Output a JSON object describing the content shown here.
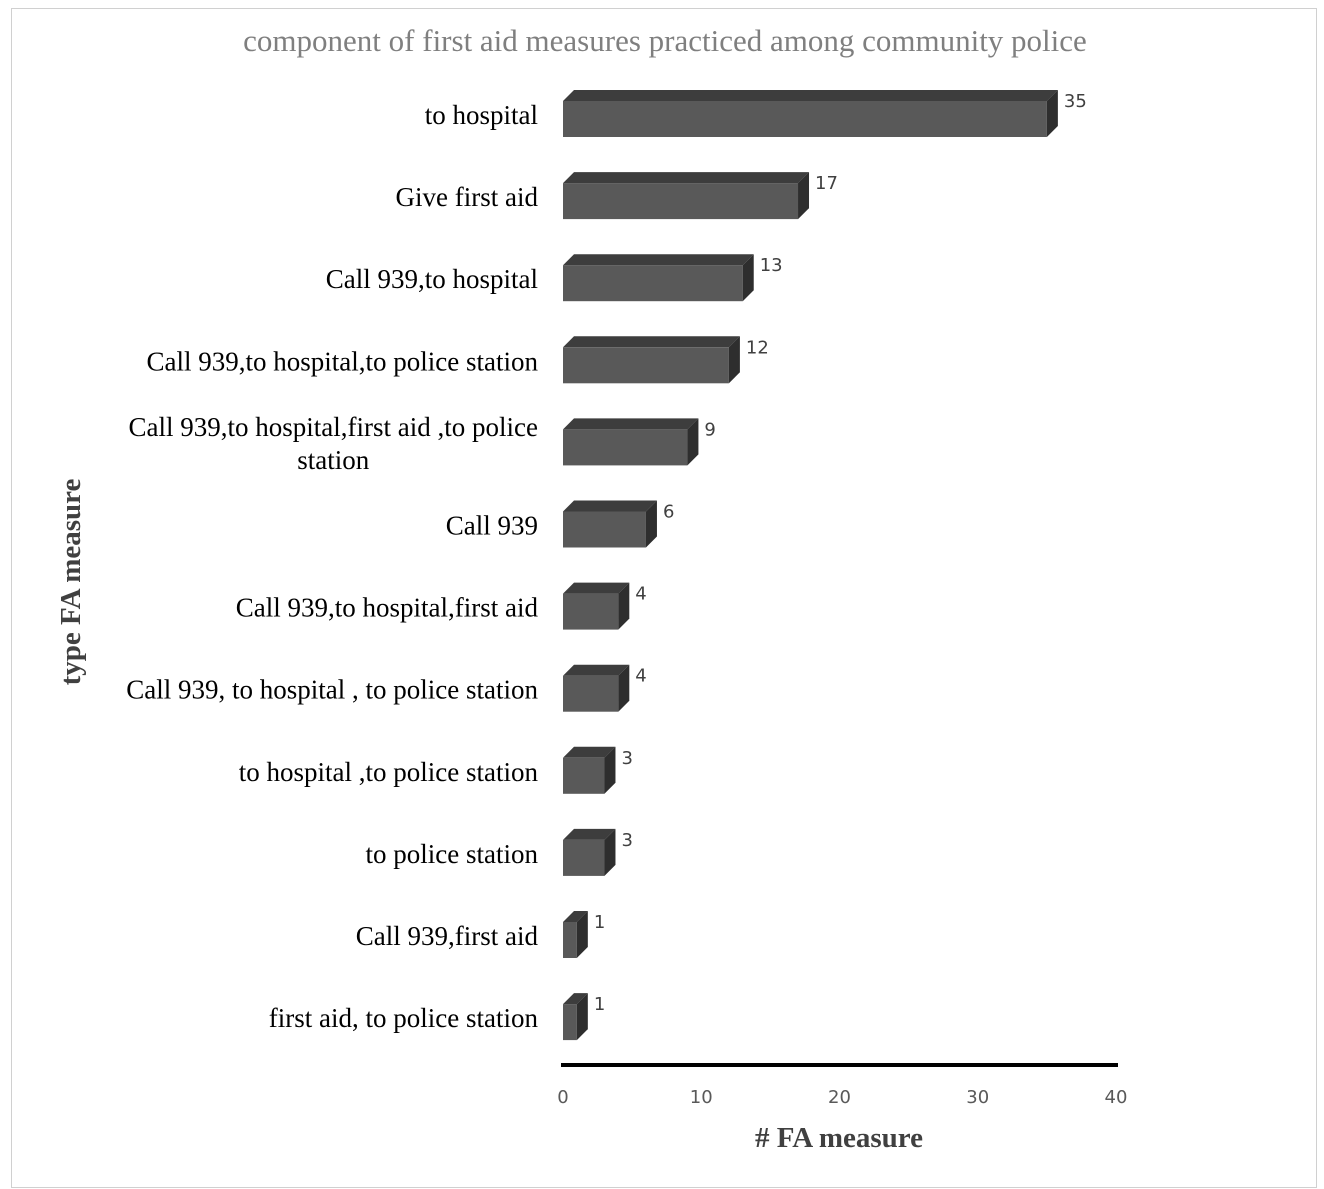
{
  "chart_data": {
    "type": "bar",
    "orientation": "horizontal",
    "title": "component of first aid measures practiced  among community police",
    "xlabel": "# FA measure",
    "ylabel": "type FA measure",
    "xlim": [
      0,
      40
    ],
    "x_ticks": [
      "0",
      "10",
      "20",
      "30",
      "40"
    ],
    "categories": [
      "to hospital",
      "Give first aid",
      "Call 939,to hospital",
      "Call 939,to hospital,to police station",
      "Call 939,to hospital,first aid ,to police station",
      "Call 939",
      "Call 939,to hospital,first aid",
      "Call 939, to hospital , to police station",
      "to hospital ,to police station",
      "to police station",
      "Call 939,first aid",
      "first aid, to police station"
    ],
    "values": [
      35,
      17,
      13,
      12,
      9,
      6,
      4,
      4,
      3,
      3,
      1,
      1
    ],
    "data_labels": true,
    "grid": false,
    "legend": "none",
    "colors": {
      "bar_front": "#595959",
      "bar_top": "#3d3d3d",
      "bar_side": "#2e2e2e",
      "axis_line": "#000000",
      "title": "#7f7f7f"
    }
  }
}
